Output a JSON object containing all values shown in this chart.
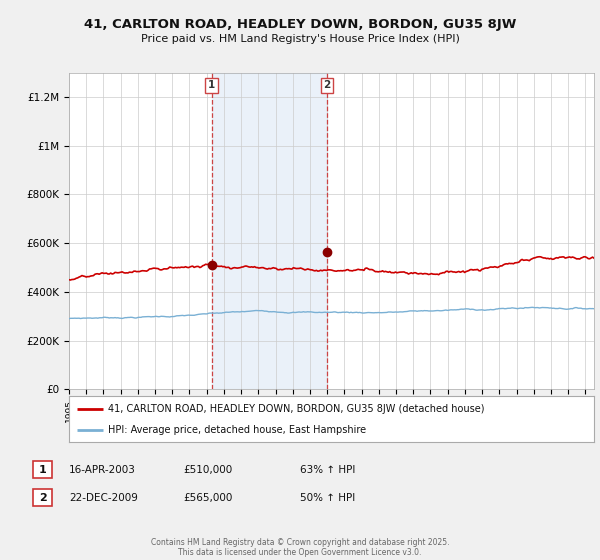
{
  "title": "41, CARLTON ROAD, HEADLEY DOWN, BORDON, GU35 8JW",
  "subtitle": "Price paid vs. HM Land Registry's House Price Index (HPI)",
  "footer": "Contains HM Land Registry data © Crown copyright and database right 2025.\nThis data is licensed under the Open Government Licence v3.0.",
  "legend_line1": "41, CARLTON ROAD, HEADLEY DOWN, BORDON, GU35 8JW (detached house)",
  "legend_line2": "HPI: Average price, detached house, East Hampshire",
  "sale1_date": "16-APR-2003",
  "sale1_price": "£510,000",
  "sale1_hpi": "63% ↑ HPI",
  "sale2_date": "22-DEC-2009",
  "sale2_price": "£565,000",
  "sale2_hpi": "50% ↑ HPI",
  "sale1_x": 2003.29,
  "sale2_x": 2009.98,
  "sale1_y": 510000,
  "sale2_y": 565000,
  "vline_color": "#cc4444",
  "shade_color": "#dce9f5",
  "shade_alpha": 0.6,
  "red_line_color": "#cc0000",
  "blue_line_color": "#7ab0d4",
  "background_color": "#f0f0f0",
  "plot_bg_color": "#ffffff",
  "grid_color": "#cccccc",
  "ylim": [
    0,
    1300000
  ],
  "xlim_start": 1995,
  "xlim_end": 2025.5,
  "yticks": [
    0,
    200000,
    400000,
    600000,
    800000,
    1000000,
    1200000
  ],
  "ytick_labels": [
    "£0",
    "£200K",
    "£400K",
    "£600K",
    "£800K",
    "£1M",
    "£1.2M"
  ],
  "xticks": [
    1995,
    1996,
    1997,
    1998,
    1999,
    2000,
    2001,
    2002,
    2003,
    2004,
    2005,
    2006,
    2007,
    2008,
    2009,
    2010,
    2011,
    2012,
    2013,
    2014,
    2015,
    2016,
    2017,
    2018,
    2019,
    2020,
    2021,
    2022,
    2023,
    2024,
    2025
  ]
}
